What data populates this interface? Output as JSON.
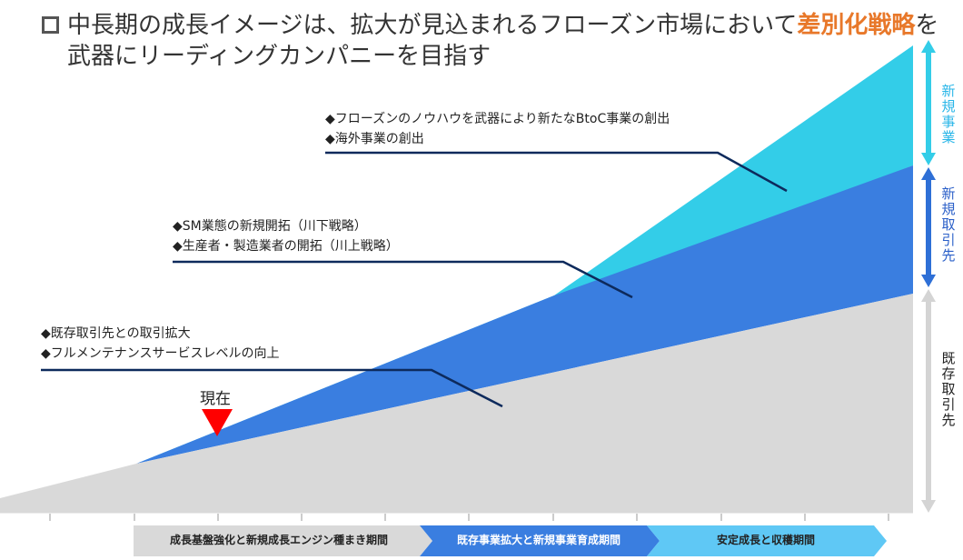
{
  "title": {
    "line1_prefix": "中長期の成長イメージは、拡大が見込まれるフローズン市場において",
    "line1_highlight": "差別化戦略",
    "line1_suffix": "を",
    "line2": "武器にリーディングカンパニーを目指す"
  },
  "notes": {
    "top": [
      "◆フローズンのノウハウを武器により新たなBtoC事業の創出",
      "◆海外事業の創出"
    ],
    "middle": [
      "◆SM業態の新規開拓（川下戦略）",
      "◆生産者・製造業者の開拓（川上戦略）"
    ],
    "bottom": [
      "◆既存取引先との取引拡大",
      "◆フルメンテナンスサービスレベルの向上"
    ]
  },
  "now_label": "現在",
  "side_labels": {
    "new_business": "新規事業",
    "new_clients": "新規取引先",
    "existing_clients": "既存取引先"
  },
  "phases": [
    "成長基盤強化と新規成長エンジン種まき期間",
    "既存事業拡大と新規事業育成期間",
    "安定成長と収穫期間"
  ],
  "colors": {
    "existing": "#d9d9d9",
    "new_clients": "#3a7ee0",
    "new_business": "#33cde8",
    "leader_line": "#0d2a5c",
    "marker": "#ff0000",
    "phase1": "#d9d9d9",
    "phase2": "#3a7ee0",
    "phase3": "#5fc8f5",
    "highlight": "#e8782a"
  }
}
